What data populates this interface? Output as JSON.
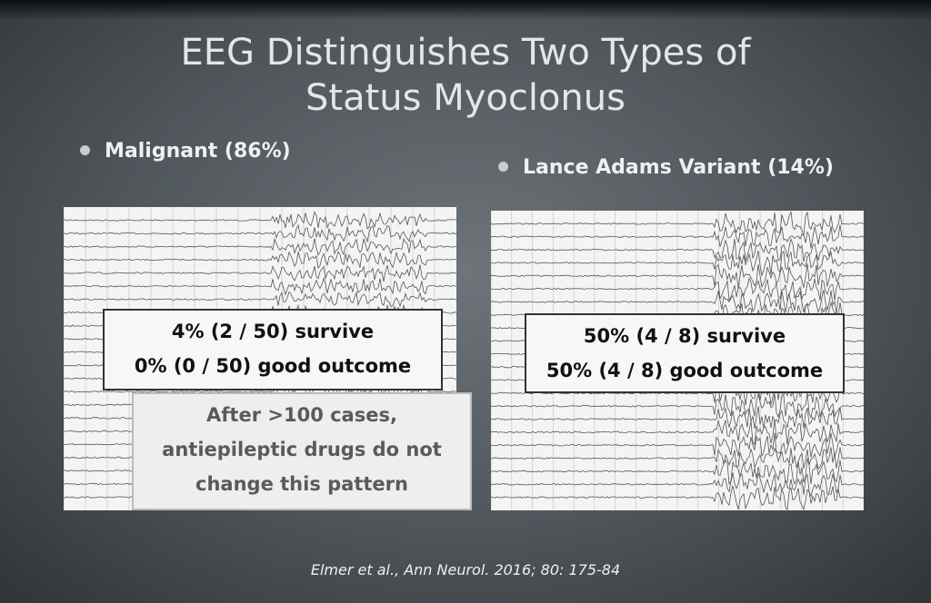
{
  "slide": {
    "title": [
      "EEG Distinguishes Two Types of",
      "Status Myoclonus"
    ],
    "bullets": [
      "Malignant (86%)",
      "Lance Adams Variant (14%)"
    ],
    "left_panel": {
      "outcome_box": [
        "4% (2 / 50) survive",
        "0% (0 / 50) good outcome"
      ],
      "note_box": [
        "After >100 cases,",
        "antiepileptic drugs do not",
        "change this pattern"
      ]
    },
    "right_panel": {
      "outcome_box": [
        "50% (4 / 8) survive",
        "50% (4 / 8) good outcome"
      ]
    },
    "citation": "Elmer et al., Ann Neurol. 2016; 80: 175-84"
  }
}
